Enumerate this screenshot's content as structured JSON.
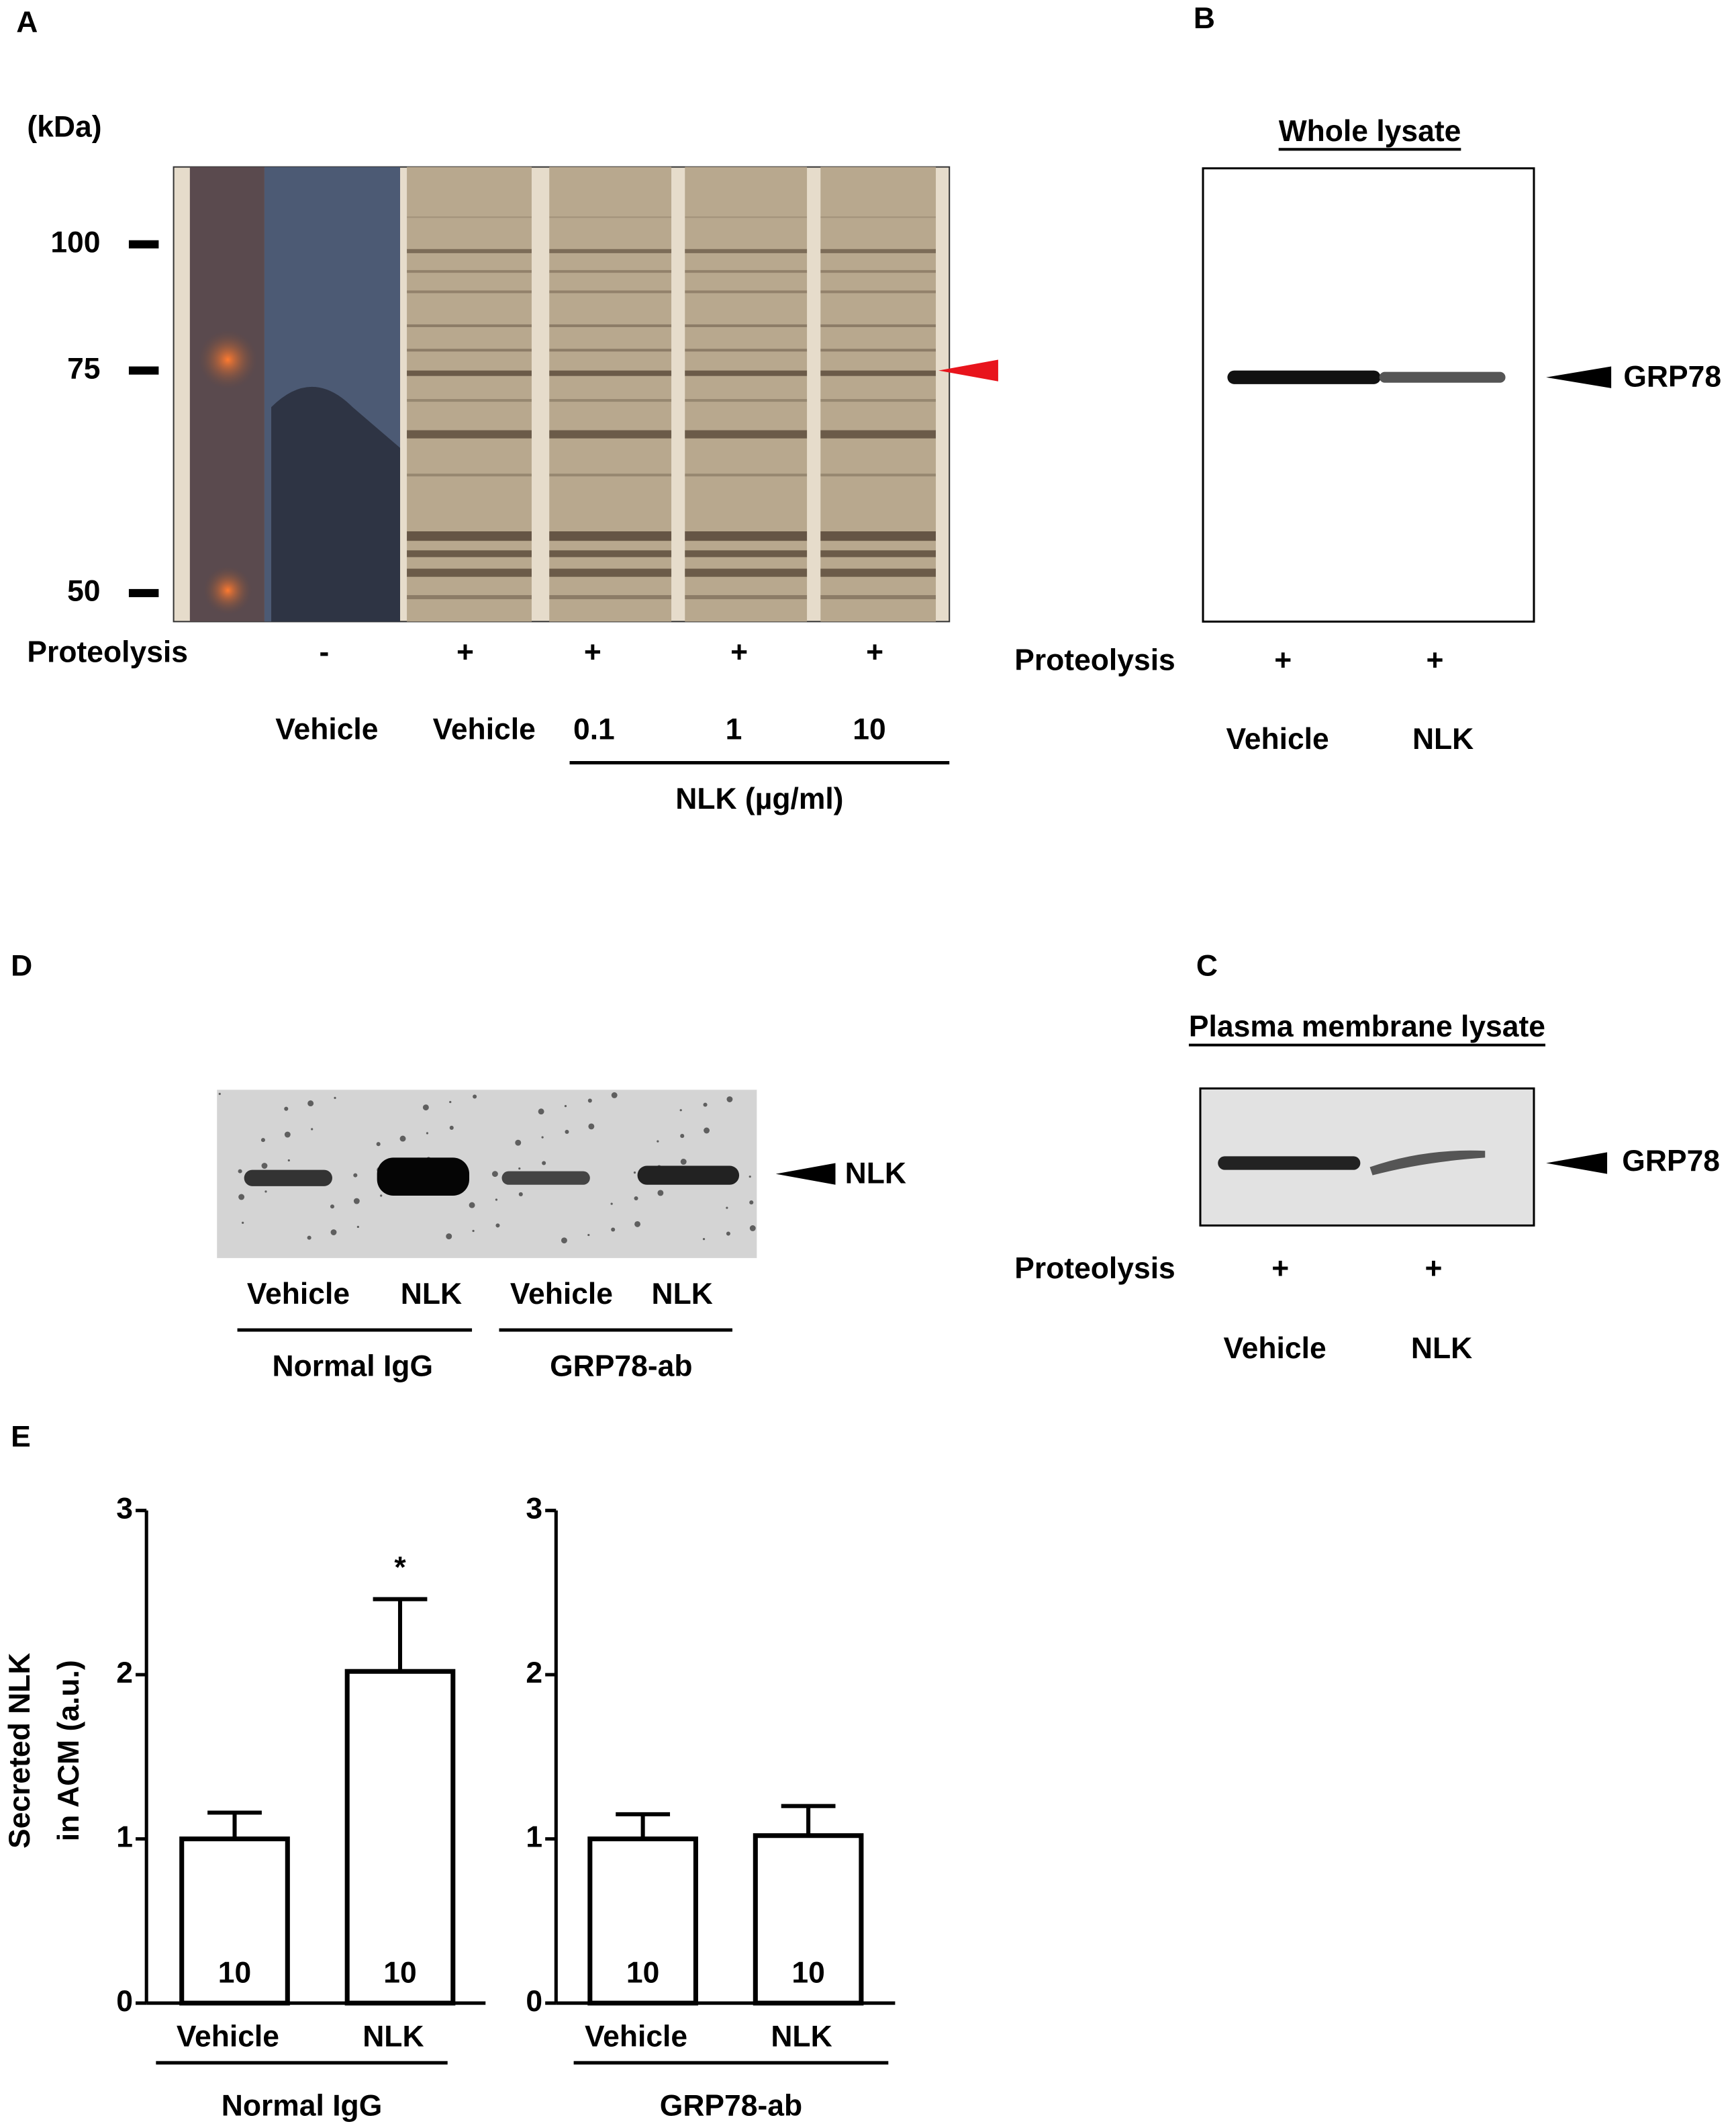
{
  "panels": {
    "A": {
      "label": "A",
      "unit": "(kDa)",
      "markers": [
        100,
        75,
        50
      ],
      "row_label": "Proteolysis",
      "proteolysis": [
        "-",
        "+",
        "+",
        "+",
        "+"
      ],
      "treatments": [
        "Vehicle",
        "Vehicle",
        "0.1",
        "1",
        "10"
      ],
      "group": "NLK (µg/ml)"
    },
    "B": {
      "label": "B",
      "title": "Whole lysate",
      "band": "GRP78",
      "row_label": "Proteolysis",
      "proteolysis": [
        "+",
        "+"
      ],
      "treatments": [
        "Vehicle",
        "NLK"
      ]
    },
    "C": {
      "label": "C",
      "title": "Plasma membrane lysate",
      "band": "GRP78",
      "row_label": "Proteolysis",
      "proteolysis": [
        "+",
        "+"
      ],
      "treatments": [
        "Vehicle",
        "NLK"
      ]
    },
    "D": {
      "label": "D",
      "band": "NLK",
      "treatments": [
        "Vehicle",
        "NLK",
        "Vehicle",
        "NLK"
      ],
      "groups": [
        "Normal IgG",
        "GRP78-ab"
      ]
    },
    "E": {
      "label": "E"
    }
  },
  "chart_data": [
    {
      "type": "bar",
      "y_label": [
        "Secreted NLK",
        "in ACM (a.u.)"
      ],
      "categories": [
        "Vehicle",
        "NLK"
      ],
      "values": [
        1.0,
        2.02
      ],
      "errors": [
        0.16,
        0.44
      ],
      "n": [
        10,
        10
      ],
      "annotations": [
        null,
        "*"
      ],
      "group": "Normal IgG",
      "color": "#ffffff",
      "ylim": [
        0,
        3
      ],
      "yticks": [
        0,
        1,
        2,
        3
      ]
    },
    {
      "type": "bar",
      "categories": [
        "Vehicle",
        "NLK"
      ],
      "values": [
        1.0,
        1.02
      ],
      "errors": [
        0.15,
        0.18
      ],
      "n": [
        10,
        10
      ],
      "group": "GRP78-ab",
      "color": "#ffffff",
      "ylim": [
        0,
        3
      ],
      "yticks": [
        0,
        1,
        2,
        3
      ]
    }
  ]
}
